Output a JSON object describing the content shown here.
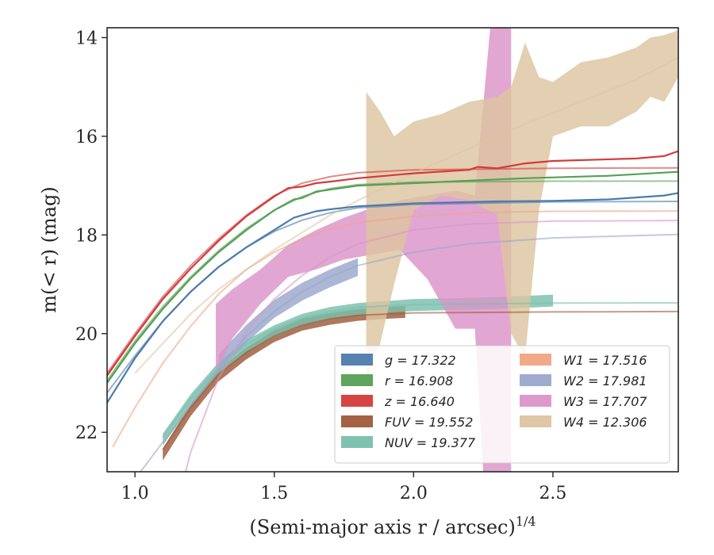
{
  "chart_data": {
    "type": "line",
    "xlabel": "(Semi-major axis r / arcsec)",
    "xlabel_superscript": "1/4",
    "ylabel": "m(< r) (mag)",
    "xlim": [
      0.9,
      2.95
    ],
    "ylim": [
      22.8,
      13.8
    ],
    "y_inverted": true,
    "xticks": [
      "1.0",
      "1.5",
      "2.0",
      "2.5"
    ],
    "xtick_values": [
      1.0,
      1.5,
      2.0,
      2.5
    ],
    "yticks": [
      "14",
      "16",
      "18",
      "20",
      "22"
    ],
    "ytick_values": [
      14,
      16,
      18,
      20,
      22
    ],
    "grid": false,
    "legend_position": "lower-right",
    "series": [
      {
        "name": "g = 17.322",
        "label_var": "g",
        "label_val": "17.322",
        "color": "#4c7bab",
        "data": [
          [
            0.9,
            21.4
          ],
          [
            1.0,
            20.5
          ],
          [
            1.1,
            19.75
          ],
          [
            1.2,
            19.15
          ],
          [
            1.3,
            18.65
          ],
          [
            1.4,
            18.25
          ],
          [
            1.5,
            17.9
          ],
          [
            1.57,
            17.65
          ],
          [
            1.6,
            17.6
          ],
          [
            1.65,
            17.52
          ],
          [
            1.7,
            17.48
          ],
          [
            1.8,
            17.42
          ],
          [
            2.0,
            17.36
          ],
          [
            2.3,
            17.32
          ],
          [
            2.5,
            17.31
          ],
          [
            2.7,
            17.28
          ],
          [
            2.9,
            17.2
          ],
          [
            2.95,
            17.15
          ]
        ],
        "model": [
          [
            0.9,
            21.2
          ],
          [
            1.0,
            20.45
          ],
          [
            1.1,
            19.75
          ],
          [
            1.2,
            19.15
          ],
          [
            1.3,
            18.65
          ],
          [
            1.4,
            18.25
          ],
          [
            1.5,
            17.93
          ],
          [
            1.6,
            17.7
          ],
          [
            1.7,
            17.55
          ],
          [
            1.8,
            17.45
          ],
          [
            2.0,
            17.38
          ],
          [
            2.5,
            17.33
          ],
          [
            2.95,
            17.32
          ]
        ]
      },
      {
        "name": "r = 16.908",
        "label_var": "r",
        "label_val": "16.908",
        "color": "#55a055",
        "data": [
          [
            0.9,
            21.0
          ],
          [
            1.0,
            20.2
          ],
          [
            1.1,
            19.5
          ],
          [
            1.2,
            18.88
          ],
          [
            1.3,
            18.35
          ],
          [
            1.4,
            17.9
          ],
          [
            1.5,
            17.5
          ],
          [
            1.57,
            17.28
          ],
          [
            1.6,
            17.25
          ],
          [
            1.65,
            17.12
          ],
          [
            1.7,
            17.08
          ],
          [
            1.8,
            17.0
          ],
          [
            2.0,
            16.95
          ],
          [
            2.2,
            16.9
          ],
          [
            2.4,
            16.85
          ],
          [
            2.7,
            16.8
          ],
          [
            2.95,
            16.72
          ]
        ],
        "model": [
          [
            0.9,
            20.95
          ],
          [
            1.0,
            20.15
          ],
          [
            1.1,
            19.45
          ],
          [
            1.2,
            18.85
          ],
          [
            1.3,
            18.32
          ],
          [
            1.4,
            17.87
          ],
          [
            1.5,
            17.5
          ],
          [
            1.6,
            17.22
          ],
          [
            1.7,
            17.06
          ],
          [
            1.8,
            16.98
          ],
          [
            2.0,
            16.93
          ],
          [
            2.5,
            16.91
          ],
          [
            2.95,
            16.908
          ]
        ]
      },
      {
        "name": "z = 16.640",
        "label_var": "z",
        "label_val": "16.640",
        "color": "#d43a3a",
        "data": [
          [
            0.9,
            20.85
          ],
          [
            1.0,
            20.05
          ],
          [
            1.1,
            19.3
          ],
          [
            1.2,
            18.68
          ],
          [
            1.3,
            18.12
          ],
          [
            1.4,
            17.62
          ],
          [
            1.5,
            17.22
          ],
          [
            1.55,
            17.05
          ],
          [
            1.6,
            17.02
          ],
          [
            1.65,
            16.95
          ],
          [
            1.7,
            16.92
          ],
          [
            1.8,
            16.85
          ],
          [
            2.0,
            16.75
          ],
          [
            2.2,
            16.68
          ],
          [
            2.23,
            16.62
          ],
          [
            2.3,
            16.65
          ],
          [
            2.4,
            16.55
          ],
          [
            2.5,
            16.5
          ],
          [
            2.8,
            16.45
          ],
          [
            2.9,
            16.4
          ],
          [
            2.95,
            16.3
          ]
        ],
        "model": [
          [
            0.9,
            20.8
          ],
          [
            1.0,
            20.0
          ],
          [
            1.1,
            19.25
          ],
          [
            1.2,
            18.62
          ],
          [
            1.3,
            18.08
          ],
          [
            1.4,
            17.6
          ],
          [
            1.5,
            17.2
          ],
          [
            1.6,
            16.95
          ],
          [
            1.7,
            16.82
          ],
          [
            1.8,
            16.74
          ],
          [
            2.0,
            16.68
          ],
          [
            2.5,
            16.65
          ],
          [
            2.95,
            16.64
          ]
        ]
      },
      {
        "name": "FUV = 19.552",
        "label_var": "FUV",
        "label_val": "19.552",
        "color": "#9e5a3a",
        "data": [
          [
            1.1,
            22.45
          ],
          [
            1.2,
            21.55
          ],
          [
            1.3,
            20.85
          ],
          [
            1.4,
            20.4
          ],
          [
            1.5,
            20.05
          ],
          [
            1.6,
            19.82
          ],
          [
            1.7,
            19.7
          ],
          [
            1.8,
            19.62
          ],
          [
            1.9,
            19.58
          ],
          [
            1.97,
            19.56
          ]
        ],
        "band_width": 0.12,
        "model": [
          [
            1.1,
            22.35
          ],
          [
            1.2,
            21.5
          ],
          [
            1.3,
            20.82
          ],
          [
            1.4,
            20.38
          ],
          [
            1.5,
            20.05
          ],
          [
            1.6,
            19.83
          ],
          [
            1.7,
            19.7
          ],
          [
            1.8,
            19.63
          ],
          [
            2.0,
            19.58
          ],
          [
            2.5,
            19.56
          ],
          [
            2.95,
            19.552
          ]
        ]
      },
      {
        "name": "NUV = 19.377",
        "label_var": "NUV",
        "label_val": "19.377",
        "color": "#79bfac",
        "data": [
          [
            1.1,
            22.15
          ],
          [
            1.2,
            21.35
          ],
          [
            1.3,
            20.7
          ],
          [
            1.4,
            20.25
          ],
          [
            1.5,
            19.95
          ],
          [
            1.6,
            19.72
          ],
          [
            1.7,
            19.58
          ],
          [
            1.8,
            19.5
          ],
          [
            2.0,
            19.42
          ],
          [
            2.3,
            19.38
          ],
          [
            2.5,
            19.33
          ]
        ],
        "band_width": 0.12,
        "model": [
          [
            1.1,
            22.1
          ],
          [
            1.2,
            21.32
          ],
          [
            1.3,
            20.68
          ],
          [
            1.4,
            20.22
          ],
          [
            1.5,
            19.9
          ],
          [
            1.6,
            19.68
          ],
          [
            1.7,
            19.55
          ],
          [
            1.8,
            19.47
          ],
          [
            2.0,
            19.41
          ],
          [
            2.5,
            19.38
          ],
          [
            2.95,
            19.377
          ]
        ]
      },
      {
        "name": "W1 = 17.516",
        "label_var": "W1",
        "label_val": "17.516",
        "color": "#f0a484",
        "model": [
          [
            0.92,
            22.3
          ],
          [
            1.0,
            21.5
          ],
          [
            1.1,
            20.6
          ],
          [
            1.2,
            19.85
          ],
          [
            1.3,
            19.2
          ],
          [
            1.4,
            18.7
          ],
          [
            1.5,
            18.35
          ],
          [
            1.6,
            18.08
          ],
          [
            1.7,
            17.88
          ],
          [
            1.8,
            17.75
          ],
          [
            2.0,
            17.62
          ],
          [
            2.2,
            17.55
          ],
          [
            2.5,
            17.52
          ],
          [
            2.95,
            17.516
          ]
        ]
      },
      {
        "name": "W2 = 17.981",
        "label_var": "W2",
        "label_val": "17.981",
        "color": "#9aa6cc",
        "data": [
          [
            1.3,
            20.6
          ],
          [
            1.4,
            20.0
          ],
          [
            1.5,
            19.5
          ],
          [
            1.6,
            19.15
          ],
          [
            1.7,
            18.88
          ],
          [
            1.8,
            18.65
          ]
        ],
        "band_width": 0.18,
        "model": [
          [
            1.0,
            22.95
          ],
          [
            1.1,
            22.2
          ],
          [
            1.2,
            21.45
          ],
          [
            1.3,
            20.7
          ],
          [
            1.4,
            20.05
          ],
          [
            1.5,
            19.55
          ],
          [
            1.6,
            19.15
          ],
          [
            1.7,
            18.85
          ],
          [
            1.8,
            18.62
          ],
          [
            2.0,
            18.35
          ],
          [
            2.2,
            18.18
          ],
          [
            2.5,
            18.06
          ],
          [
            2.95,
            17.99
          ]
        ]
      },
      {
        "name": "W3 = 17.707",
        "label_var": "W3",
        "label_val": "17.707",
        "color": "#db94c8",
        "band_upper": [
          [
            1.29,
            19.4
          ],
          [
            1.35,
            19.1
          ],
          [
            1.45,
            18.7
          ],
          [
            1.55,
            18.2
          ],
          [
            1.65,
            17.9
          ],
          [
            1.75,
            17.65
          ],
          [
            1.85,
            17.45
          ],
          [
            1.95,
            17.3
          ],
          [
            2.05,
            17.2
          ],
          [
            2.15,
            17.1
          ],
          [
            2.22,
            17.2
          ],
          [
            2.28,
            13.5
          ],
          [
            2.35,
            13.5
          ],
          [
            2.35,
            17.0
          ]
        ],
        "band_lower": [
          [
            1.29,
            20.8
          ],
          [
            1.35,
            20.1
          ],
          [
            1.45,
            19.4
          ],
          [
            1.55,
            18.85
          ],
          [
            1.65,
            18.7
          ],
          [
            1.75,
            18.5
          ],
          [
            1.85,
            18.4
          ],
          [
            1.95,
            18.3
          ],
          [
            2.05,
            18.9
          ],
          [
            2.15,
            19.9
          ],
          [
            2.22,
            19.9
          ],
          [
            2.25,
            22.8
          ],
          [
            2.35,
            22.8
          ],
          [
            2.35,
            17.0
          ]
        ],
        "model": [
          [
            1.15,
            23.5
          ],
          [
            1.2,
            22.4
          ],
          [
            1.3,
            20.9
          ],
          [
            1.4,
            19.95
          ],
          [
            1.5,
            19.3
          ],
          [
            1.6,
            18.82
          ],
          [
            1.7,
            18.45
          ],
          [
            1.8,
            18.18
          ],
          [
            2.0,
            17.9
          ],
          [
            2.2,
            17.78
          ],
          [
            2.5,
            17.72
          ],
          [
            2.95,
            17.707
          ]
        ]
      },
      {
        "name": "W4 = 12.306",
        "label_var": "W4",
        "label_val": "12.306",
        "color": "#ddc4a0",
        "band_upper": [
          [
            1.83,
            15.1
          ],
          [
            1.88,
            15.5
          ],
          [
            1.93,
            16.0
          ],
          [
            2.0,
            15.7
          ],
          [
            2.1,
            15.55
          ],
          [
            2.2,
            15.3
          ],
          [
            2.3,
            15.2
          ],
          [
            2.35,
            15.0
          ],
          [
            2.4,
            14.1
          ],
          [
            2.45,
            14.8
          ],
          [
            2.5,
            14.9
          ],
          [
            2.55,
            14.7
          ],
          [
            2.6,
            14.5
          ],
          [
            2.7,
            14.4
          ],
          [
            2.8,
            14.2
          ],
          [
            2.85,
            14.0
          ],
          [
            2.9,
            13.95
          ],
          [
            2.95,
            13.85
          ]
        ],
        "band_lower": [
          [
            1.83,
            21.0
          ],
          [
            1.88,
            20.2
          ],
          [
            1.93,
            19.0
          ],
          [
            2.0,
            17.5
          ],
          [
            2.1,
            17.2
          ],
          [
            2.2,
            17.3
          ],
          [
            2.3,
            17.6
          ],
          [
            2.35,
            20.0
          ],
          [
            2.4,
            20.5
          ],
          [
            2.45,
            17.5
          ],
          [
            2.5,
            16.0
          ],
          [
            2.55,
            15.9
          ],
          [
            2.6,
            15.8
          ],
          [
            2.7,
            15.8
          ],
          [
            2.8,
            15.5
          ],
          [
            2.85,
            15.2
          ],
          [
            2.9,
            15.3
          ],
          [
            2.95,
            14.8
          ]
        ],
        "model": [
          [
            1.0,
            20.8
          ],
          [
            1.1,
            20.2
          ],
          [
            1.2,
            19.6
          ],
          [
            1.3,
            19.1
          ],
          [
            1.4,
            18.7
          ],
          [
            1.5,
            18.3
          ],
          [
            1.6,
            17.95
          ],
          [
            1.7,
            17.6
          ],
          [
            1.8,
            17.3
          ],
          [
            2.0,
            16.75
          ],
          [
            2.2,
            16.25
          ],
          [
            2.4,
            15.75
          ],
          [
            2.6,
            15.3
          ],
          [
            2.8,
            14.85
          ],
          [
            2.95,
            14.4
          ]
        ]
      }
    ]
  }
}
